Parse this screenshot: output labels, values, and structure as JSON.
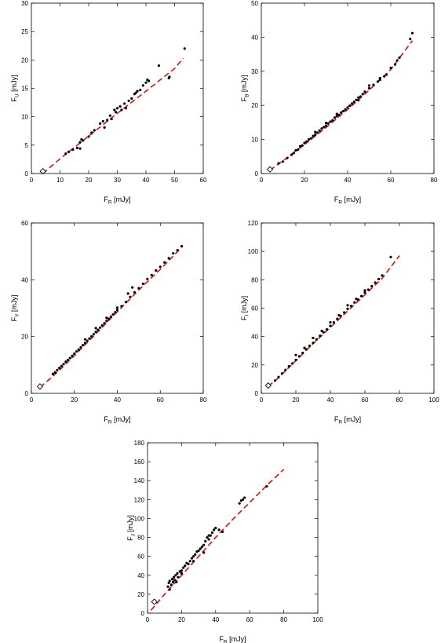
{
  "chart_data": [
    {
      "type": "scatter",
      "id": "U",
      "xlabel_main": "F",
      "xlabel_sub": "R",
      "xlabel_unit": " [mJy]",
      "ylabel_main": "F",
      "ylabel_sub": "U",
      "ylabel_unit": " [mJy]",
      "xlim": [
        0,
        60
      ],
      "ylim": [
        0,
        30
      ],
      "xticks": [
        "0",
        "10",
        "20",
        "30",
        "40",
        "50",
        "60"
      ],
      "yticks": [
        "0",
        "5",
        "10",
        "15",
        "20",
        "25",
        "30"
      ],
      "fit_line": [
        [
          4,
          0
        ],
        [
          10,
          2.6
        ],
        [
          20,
          6.6
        ],
        [
          30,
          10.6
        ],
        [
          40,
          14.5
        ],
        [
          50,
          18.5
        ],
        [
          53,
          20.3
        ]
      ],
      "highlight_point": [
        4,
        0.4
      ],
      "points": [
        [
          12,
          3.5
        ],
        [
          13,
          3.8
        ],
        [
          14.5,
          4.2
        ],
        [
          16,
          4.5
        ],
        [
          17,
          5.5
        ],
        [
          17.5,
          6
        ],
        [
          18,
          5.8
        ],
        [
          20,
          6.5
        ],
        [
          21,
          7.2
        ],
        [
          24,
          8.8
        ],
        [
          25,
          9.2
        ],
        [
          25.5,
          8.1
        ],
        [
          26.5,
          9.4
        ],
        [
          27.5,
          10.2
        ],
        [
          28,
          9.6
        ],
        [
          29,
          11.2
        ],
        [
          30,
          11.5
        ],
        [
          31,
          11.8
        ],
        [
          31.5,
          11.2
        ],
        [
          32.5,
          12.3
        ],
        [
          33,
          11.5
        ],
        [
          34,
          12.8
        ],
        [
          35,
          13.2
        ],
        [
          36,
          14
        ],
        [
          37,
          14.5
        ],
        [
          38,
          14.7
        ],
        [
          39,
          15.5
        ],
        [
          40,
          16
        ],
        [
          40.5,
          16.5
        ],
        [
          41,
          16.3
        ],
        [
          44.5,
          19
        ],
        [
          48,
          16.8
        ],
        [
          48.2,
          17
        ],
        [
          53.5,
          22
        ],
        [
          17,
          4.4
        ],
        [
          36.5,
          14.2
        ],
        [
          22,
          7.6
        ],
        [
          29.5,
          10.8
        ]
      ]
    },
    {
      "type": "scatter",
      "id": "B",
      "xlabel_main": "F",
      "xlabel_sub": "R",
      "xlabel_unit": " [mJy]",
      "ylabel_main": "F",
      "ylabel_sub": "B",
      "ylabel_unit": " [mJy]",
      "xlim": [
        0,
        80
      ],
      "ylim": [
        0,
        50
      ],
      "xticks": [
        "0",
        "20",
        "40",
        "60",
        "80"
      ],
      "yticks": [
        "0",
        "10",
        "20",
        "30",
        "40",
        "50"
      ],
      "fit_line": [
        [
          4,
          1
        ],
        [
          10,
          3.7
        ],
        [
          20,
          8.5
        ],
        [
          30,
          13.5
        ],
        [
          40,
          18.8
        ],
        [
          50,
          24.5
        ],
        [
          60,
          30.5
        ],
        [
          70,
          39
        ]
      ],
      "highlight_point": [
        4,
        1.2
      ],
      "points": [
        [
          8,
          3
        ],
        [
          10,
          3.5
        ],
        [
          12,
          4.5
        ],
        [
          14,
          5.5
        ],
        [
          15,
          6
        ],
        [
          16,
          6.8
        ],
        [
          17,
          7
        ],
        [
          18,
          8
        ],
        [
          19,
          8.2
        ],
        [
          20,
          9
        ],
        [
          21,
          9.4
        ],
        [
          22,
          10
        ],
        [
          23,
          10.3
        ],
        [
          24,
          11
        ],
        [
          25,
          11.4
        ],
        [
          26,
          12
        ],
        [
          27,
          12.6
        ],
        [
          28,
          13.2
        ],
        [
          29,
          13.6
        ],
        [
          30,
          14
        ],
        [
          31,
          14.7
        ],
        [
          32,
          15.2
        ],
        [
          33,
          15.6
        ],
        [
          34,
          16.4
        ],
        [
          35,
          16.8
        ],
        [
          36,
          17.2
        ],
        [
          37,
          17.9
        ],
        [
          38,
          18.3
        ],
        [
          39,
          18.8
        ],
        [
          40,
          19.4
        ],
        [
          41,
          19.9
        ],
        [
          42,
          20.5
        ],
        [
          43,
          21
        ],
        [
          44,
          21.6
        ],
        [
          45,
          22.3
        ],
        [
          46,
          22.6
        ],
        [
          47,
          23.3
        ],
        [
          48,
          24
        ],
        [
          50,
          25
        ],
        [
          52,
          26
        ],
        [
          54,
          27
        ],
        [
          55,
          27.5
        ],
        [
          57,
          28.5
        ],
        [
          58,
          29
        ],
        [
          60,
          31
        ],
        [
          62,
          32
        ],
        [
          63,
          33.2
        ],
        [
          64,
          34
        ],
        [
          69,
          39.5
        ],
        [
          70,
          41.2
        ],
        [
          25,
          12.2
        ],
        [
          30,
          14.8
        ],
        [
          35,
          17.5
        ],
        [
          45,
          21.5
        ],
        [
          50,
          25.8
        ],
        [
          55,
          28
        ]
      ]
    },
    {
      "type": "scatter",
      "id": "V",
      "xlabel_main": "F",
      "xlabel_sub": "R",
      "xlabel_unit": " [mJy]",
      "ylabel_main": "F",
      "ylabel_sub": "V",
      "ylabel_unit": " [mJy]",
      "xlim": [
        0,
        80
      ],
      "ylim": [
        0,
        70
      ],
      "xticks": [
        "0",
        "20",
        "40",
        "60",
        "80"
      ],
      "yticks": [
        "0",
        "20",
        "40",
        "60"
      ],
      "fit_line": [
        [
          4,
          2.5
        ],
        [
          10,
          7
        ],
        [
          20,
          15.5
        ],
        [
          30,
          24.5
        ],
        [
          40,
          33.5
        ],
        [
          50,
          42.5
        ],
        [
          60,
          51
        ],
        [
          70,
          60
        ]
      ],
      "highlight_point": [
        4,
        2.8
      ],
      "points": [
        [
          10,
          8
        ],
        [
          11,
          8.6
        ],
        [
          12,
          9.5
        ],
        [
          13,
          10.4
        ],
        [
          14,
          11.2
        ],
        [
          15,
          12
        ],
        [
          16,
          13
        ],
        [
          17,
          13.7
        ],
        [
          18,
          14.5
        ],
        [
          19,
          15.4
        ],
        [
          20,
          16.3
        ],
        [
          21,
          17.2
        ],
        [
          22,
          18
        ],
        [
          23,
          18.9
        ],
        [
          24,
          19.8
        ],
        [
          25,
          20.7
        ],
        [
          26,
          21.6
        ],
        [
          27,
          22.5
        ],
        [
          28,
          23.4
        ],
        [
          29,
          24.3
        ],
        [
          30,
          25.2
        ],
        [
          31,
          26.1
        ],
        [
          32,
          27
        ],
        [
          33,
          27.9
        ],
        [
          34,
          28.8
        ],
        [
          35,
          29.7
        ],
        [
          36,
          30.6
        ],
        [
          37,
          31.5
        ],
        [
          38,
          32.4
        ],
        [
          39,
          33.3
        ],
        [
          40,
          34.2
        ],
        [
          42,
          35.8
        ],
        [
          44,
          37.5
        ],
        [
          46,
          39.6
        ],
        [
          48,
          41.5
        ],
        [
          50,
          43.2
        ],
        [
          52,
          45
        ],
        [
          54,
          47
        ],
        [
          56,
          48.6
        ],
        [
          58,
          50.5
        ],
        [
          60,
          52
        ],
        [
          62,
          53.8
        ],
        [
          64,
          55.5
        ],
        [
          66,
          57.5
        ],
        [
          68,
          58.8
        ],
        [
          70,
          60.5
        ],
        [
          45,
          41
        ],
        [
          47,
          43.5
        ],
        [
          25,
          22.2
        ],
        [
          30,
          26.8
        ],
        [
          35,
          31
        ],
        [
          40,
          35.2
        ]
      ]
    },
    {
      "type": "scatter",
      "id": "I",
      "xlabel_main": "F",
      "xlabel_sub": "R",
      "xlabel_unit": " [mJy]",
      "ylabel_main": "F",
      "ylabel_sub": "I",
      "ylabel_unit": " [mJy]",
      "xlim": [
        0,
        100
      ],
      "ylim": [
        0,
        120
      ],
      "xticks": [
        "0",
        "20",
        "40",
        "60",
        "80",
        "100"
      ],
      "yticks": [
        "0",
        "20",
        "40",
        "60",
        "80",
        "100",
        "120"
      ],
      "fit_line": [
        [
          4,
          5
        ],
        [
          10,
          11
        ],
        [
          20,
          23
        ],
        [
          30,
          35
        ],
        [
          40,
          46.5
        ],
        [
          50,
          58
        ],
        [
          60,
          69.5
        ],
        [
          70,
          81
        ],
        [
          80,
          97
        ]
      ],
      "highlight_point": [
        4,
        5.5
      ],
      "points": [
        [
          8,
          9
        ],
        [
          10,
          11.5
        ],
        [
          12,
          14
        ],
        [
          14,
          16.5
        ],
        [
          16,
          19
        ],
        [
          18,
          21
        ],
        [
          20,
          23.5
        ],
        [
          22,
          26
        ],
        [
          24,
          28.5
        ],
        [
          26,
          31
        ],
        [
          28,
          33.5
        ],
        [
          30,
          35.5
        ],
        [
          32,
          38
        ],
        [
          34,
          40.5
        ],
        [
          36,
          43
        ],
        [
          38,
          45
        ],
        [
          40,
          47.5
        ],
        [
          42,
          50
        ],
        [
          44,
          52.5
        ],
        [
          46,
          54.5
        ],
        [
          48,
          57
        ],
        [
          50,
          59.5
        ],
        [
          52,
          61.5
        ],
        [
          54,
          64
        ],
        [
          56,
          66
        ],
        [
          58,
          68.5
        ],
        [
          60,
          71
        ],
        [
          62,
          73
        ],
        [
          64,
          75.5
        ],
        [
          66,
          78
        ],
        [
          68,
          80.5
        ],
        [
          70,
          83
        ],
        [
          75,
          96
        ],
        [
          20,
          27
        ],
        [
          25,
          32
        ],
        [
          30,
          39
        ],
        [
          35,
          44
        ],
        [
          40,
          50
        ],
        [
          45,
          55
        ],
        [
          50,
          62
        ],
        [
          55,
          66.5
        ],
        [
          60,
          72.5
        ]
      ]
    },
    {
      "type": "scatter",
      "id": "J",
      "xlabel_main": "F",
      "xlabel_sub": "R",
      "xlabel_unit": " [mJy]",
      "ylabel_main": "F",
      "ylabel_sub": "J",
      "ylabel_unit": " [mJy]",
      "xlim": [
        0,
        100
      ],
      "ylim": [
        0,
        180
      ],
      "xticks": [
        "0",
        "20",
        "40",
        "60",
        "80",
        "100"
      ],
      "yticks": [
        "0",
        "20",
        "40",
        "60",
        "80",
        "100",
        "120",
        "140",
        "160",
        "180"
      ],
      "fit_line": [
        [
          2,
          3
        ],
        [
          10,
          20
        ],
        [
          20,
          40
        ],
        [
          30,
          60
        ],
        [
          40,
          80
        ],
        [
          50,
          99
        ],
        [
          60,
          117
        ],
        [
          70,
          135
        ],
        [
          80,
          152
        ]
      ],
      "highlight_point": [
        4,
        12
      ],
      "points": [
        [
          12,
          28
        ],
        [
          12.5,
          32
        ],
        [
          13,
          34
        ],
        [
          13,
          25
        ],
        [
          14,
          30
        ],
        [
          14.5,
          36
        ],
        [
          15,
          33
        ],
        [
          15.5,
          38
        ],
        [
          16,
          35
        ],
        [
          16.5,
          40
        ],
        [
          17,
          33
        ],
        [
          17.5,
          42
        ],
        [
          18,
          38
        ],
        [
          19,
          44
        ],
        [
          20,
          45
        ],
        [
          21,
          48
        ],
        [
          22,
          50
        ],
        [
          23,
          53
        ],
        [
          24,
          52
        ],
        [
          25,
          55
        ],
        [
          26,
          58
        ],
        [
          27,
          60
        ],
        [
          28,
          62
        ],
        [
          29,
          65
        ],
        [
          30,
          66
        ],
        [
          31,
          68
        ],
        [
          32,
          70
        ],
        [
          33,
          72
        ],
        [
          34,
          76
        ],
        [
          35,
          80
        ],
        [
          36,
          78
        ],
        [
          37,
          82
        ],
        [
          38,
          85
        ],
        [
          39,
          88
        ],
        [
          40,
          90
        ],
        [
          42,
          88
        ],
        [
          44,
          86
        ],
        [
          54,
          116
        ],
        [
          55,
          119
        ],
        [
          56,
          120
        ],
        [
          57,
          122
        ],
        [
          70,
          134
        ],
        [
          27,
          55
        ],
        [
          33,
          64
        ],
        [
          36,
          82
        ],
        [
          20,
          42
        ]
      ]
    }
  ]
}
